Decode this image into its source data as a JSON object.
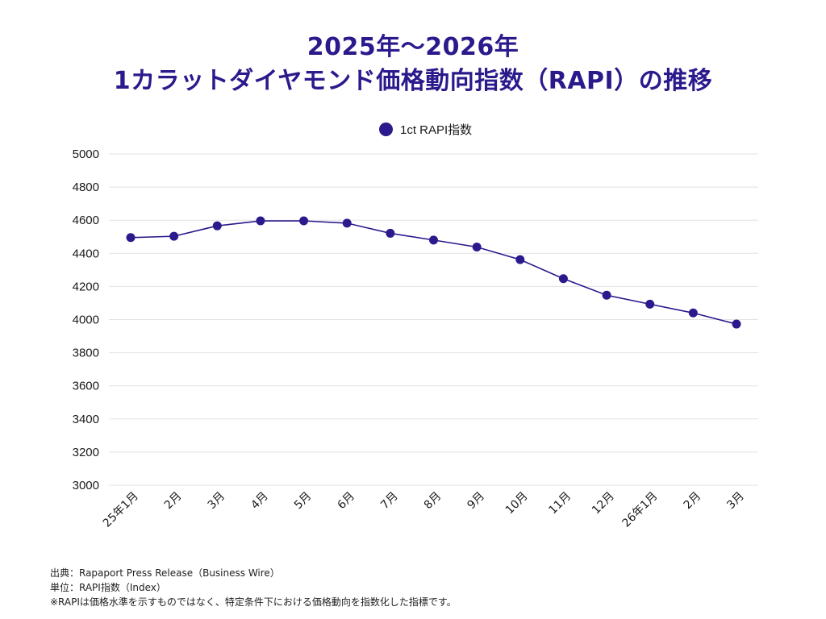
{
  "title": {
    "line1": "2025年〜2026年",
    "line2": "1カラットダイヤモンド価格動向指数（RAPI）の推移"
  },
  "colors": {
    "series": "#2a1a8c",
    "grid": "#e2e2e2",
    "title": "#2a1a8c"
  },
  "chart_data": {
    "type": "line",
    "categories": [
      "25年1月",
      "2月",
      "3月",
      "4月",
      "5月",
      "6月",
      "7月",
      "8月",
      "9月",
      "10月",
      "11月",
      "12月",
      "26年1月",
      "2月",
      "3月"
    ],
    "series": [
      {
        "name": "1ct RAPI指数",
        "values": [
          4495,
          4503,
          4566,
          4596,
          4596,
          4582,
          4521,
          4480,
          4438,
          4362,
          4247,
          4147,
          4093,
          4040,
          3973
        ]
      }
    ],
    "ylim": [
      3000,
      5000
    ],
    "yticks": [
      3000,
      3200,
      3400,
      3600,
      3800,
      4000,
      4200,
      4400,
      4600,
      4800,
      5000
    ],
    "grid": true,
    "legend": "top-center",
    "markers": true
  },
  "footer": {
    "source": "出典：Rapaport Press Release（Business Wire）",
    "unit": "単位：RAPI指数（Index）",
    "note": "※RAPIは価格水準を示すものではなく、特定条件下における価格動向を指数化した指標です。"
  }
}
